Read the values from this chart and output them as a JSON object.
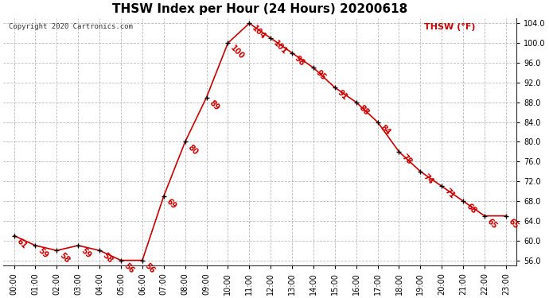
{
  "title": "THSW Index per Hour (24 Hours) 20200618",
  "copyright": "Copyright 2020 Cartronics.com",
  "legend_label": "THSW (°F)",
  "hours": [
    0,
    1,
    2,
    3,
    4,
    5,
    6,
    7,
    8,
    9,
    10,
    11,
    12,
    13,
    14,
    15,
    16,
    17,
    18,
    19,
    20,
    21,
    22,
    23
  ],
  "values": [
    61,
    59,
    58,
    59,
    58,
    56,
    56,
    69,
    80,
    89,
    100,
    104,
    101,
    98,
    95,
    91,
    88,
    84,
    78,
    74,
    71,
    68,
    65,
    65
  ],
  "hour_labels": [
    "00:00",
    "01:00",
    "02:00",
    "03:00",
    "04:00",
    "05:00",
    "06:00",
    "07:00",
    "08:00",
    "09:00",
    "10:00",
    "11:00",
    "12:00",
    "13:00",
    "14:00",
    "15:00",
    "16:00",
    "17:00",
    "18:00",
    "19:00",
    "20:00",
    "21:00",
    "22:00",
    "23:00"
  ],
  "ylim": [
    55.0,
    105.0
  ],
  "yticks": [
    56.0,
    60.0,
    64.0,
    68.0,
    72.0,
    76.0,
    80.0,
    84.0,
    88.0,
    92.0,
    96.0,
    100.0,
    104.0
  ],
  "line_color": "#cc0000",
  "marker_color": "#000000",
  "bg_color": "#ffffff",
  "grid_color": "#bbbbbb",
  "title_fontsize": 11,
  "annot_fontsize": 7,
  "tick_fontsize": 7
}
